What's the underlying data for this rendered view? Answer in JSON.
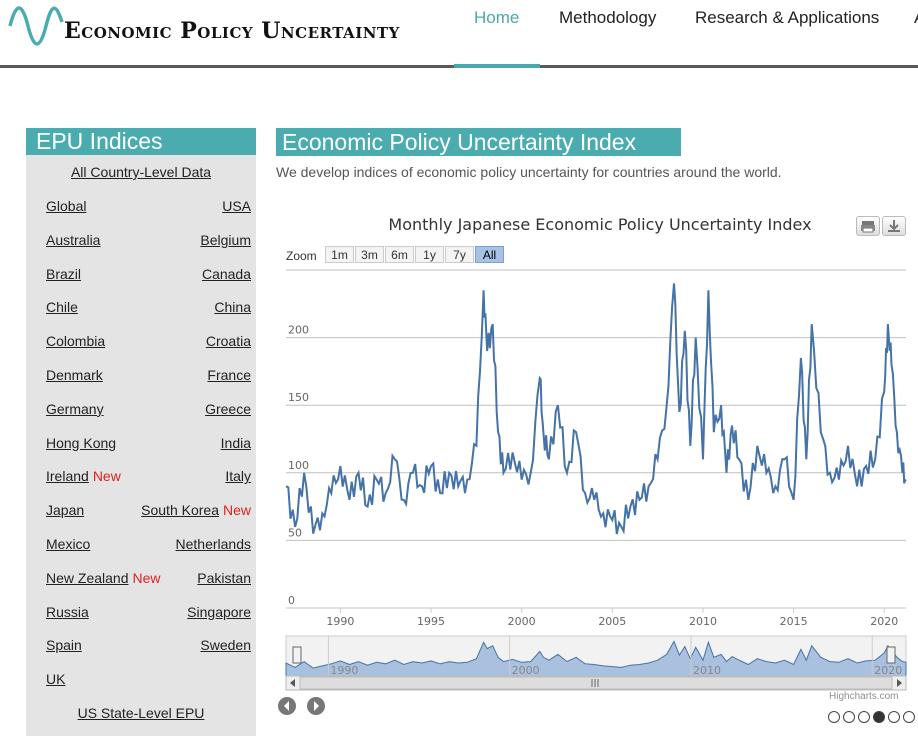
{
  "header": {
    "logo_text": "Economic Policy Uncertainty",
    "nav": [
      "Home",
      "Methodology",
      "Research & Applications",
      "A"
    ],
    "accent": "#4aacaf"
  },
  "sidebar": {
    "title": "EPU Indices",
    "all_country": "All Country-Level Data",
    "rows": [
      {
        "left": "Global",
        "right": "USA"
      },
      {
        "left": "Australia",
        "right": "Belgium"
      },
      {
        "left": "Brazil",
        "right": "Canada"
      },
      {
        "left": "Chile",
        "right": "China"
      },
      {
        "left": "Colombia",
        "right": "Croatia"
      },
      {
        "left": "Denmark",
        "right": "France"
      },
      {
        "left": "Germany",
        "right": "Greece"
      },
      {
        "left": "Hong Kong",
        "right": "India"
      },
      {
        "left": "Ireland",
        "left_new": "New",
        "right": "Italy"
      },
      {
        "left": "Japan",
        "right": "South Korea",
        "right_new": "New"
      },
      {
        "left": "Mexico",
        "right": "Netherlands"
      },
      {
        "left": "New Zealand",
        "left_new": "New",
        "right": "Pakistan"
      },
      {
        "left": "Russia",
        "right": "Singapore"
      },
      {
        "left": "Spain",
        "right": "Sweden"
      },
      {
        "left": "UK",
        "right": ""
      }
    ],
    "state_level": "US State-Level EPU",
    "new_color": "#e02020"
  },
  "main": {
    "title": "Economic Policy Uncertainty Index",
    "description": "We develop indices of economic policy uncertainty for countries around the world."
  },
  "chart_data": {
    "type": "line",
    "title": "Monthly Japanese Economic Policy Uncertainty Index",
    "zoom_label": "Zoom",
    "zoom_buttons": [
      "1m",
      "3m",
      "6m",
      "1y",
      "7y",
      "All"
    ],
    "zoom_selected": "All",
    "y_ticks": [
      0,
      50,
      100,
      150,
      200
    ],
    "ylim": [
      0,
      250
    ],
    "x_ticks": [
      1990,
      1995,
      2000,
      2005,
      2010,
      2015,
      2020
    ],
    "navigator_ticks": [
      1990,
      2000,
      2010,
      2020
    ],
    "xlim": [
      1987.0,
      2021.2
    ],
    "series_color": "#4572a7",
    "series": [
      {
        "x": [
          1987.0,
          1987.5,
          1988.0,
          1988.5,
          1989.0,
          1989.5,
          1990.0,
          1990.5,
          1991.0,
          1991.5,
          1992.0,
          1992.5,
          1993.0,
          1993.5,
          1994.0,
          1994.5,
          1995.0,
          1995.5,
          1996.0,
          1996.5,
          1997.0,
          1997.5,
          1997.9,
          1998.1,
          1998.4,
          1998.7,
          1999.0,
          1999.5,
          2000.0,
          2000.5,
          2001.0,
          2001.2,
          2001.5,
          2002.0,
          2002.5,
          2003.0,
          2003.5,
          2004.0,
          2004.5,
          2005.0,
          2005.5,
          2006.0,
          2006.5,
          2007.0,
          2007.5,
          2008.0,
          2008.4,
          2008.7,
          2009.0,
          2009.3,
          2009.6,
          2010.0,
          2010.3,
          2010.6,
          2011.0,
          2011.3,
          2011.6,
          2012.0,
          2012.5,
          2013.0,
          2013.5,
          2014.0,
          2014.5,
          2015.0,
          2015.4,
          2015.7,
          2016.0,
          2016.5,
          2017.0,
          2017.5,
          2018.0,
          2018.5,
          2019.0,
          2019.5,
          2020.0,
          2020.2,
          2020.4,
          2020.7,
          2021.0,
          2021.2
        ],
        "y": [
          90,
          60,
          100,
          55,
          70,
          85,
          105,
          80,
          100,
          75,
          95,
          85,
          110,
          80,
          100,
          90,
          105,
          85,
          100,
          90,
          95,
          120,
          235,
          190,
          210,
          130,
          100,
          115,
          95,
          100,
          170,
          130,
          110,
          150,
          100,
          130,
          85,
          80,
          70,
          65,
          60,
          75,
          80,
          90,
          110,
          150,
          240,
          145,
          205,
          120,
          200,
          110,
          235,
          130,
          150,
          100,
          135,
          110,
          80,
          120,
          100,
          90,
          110,
          80,
          185,
          110,
          210,
          130,
          100,
          95,
          120,
          90,
          105,
          110,
          160,
          210,
          180,
          130,
          100,
          95
        ]
      }
    ]
  }
}
